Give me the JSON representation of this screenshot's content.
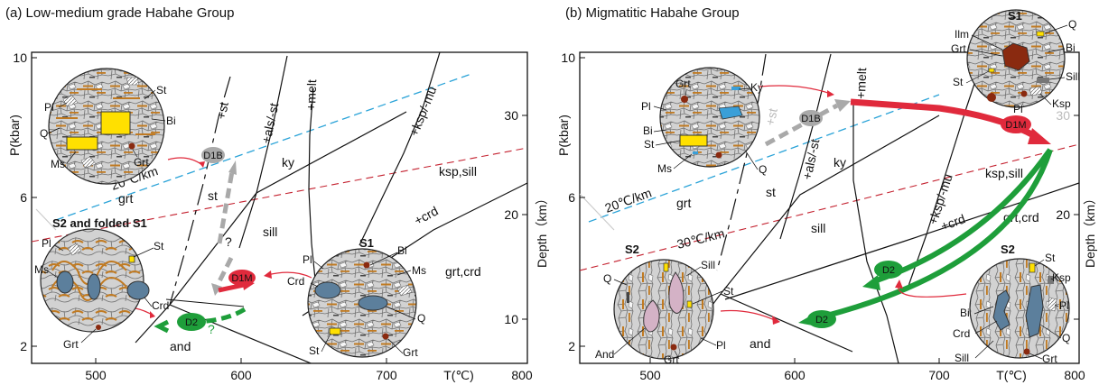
{
  "panels": [
    {
      "title": "(a) Low-medium grade Habahe Group",
      "axes": {
        "ylabel": "P(kbar)",
        "xlabel": "T(℃)",
        "y2label": "Depth（km）",
        "yticks": [
          "10",
          "6",
          "2"
        ],
        "xticks": [
          "500",
          "600",
          "700",
          "800"
        ],
        "y2ticks": [
          "30",
          "20",
          "10"
        ]
      },
      "gradients": [
        "20℃/km"
      ],
      "reaction_labels": [
        "+st",
        "+als/-st",
        "+melt",
        "+ksp/-mu",
        "+crd"
      ],
      "field_labels": [
        "grt",
        "st",
        "ky",
        "sill",
        "ksp,sill",
        "grt,crd",
        "and"
      ],
      "path_labels": [
        "D1B",
        "D1M",
        "D2",
        "?",
        "?"
      ],
      "circles": [
        {
          "title": "",
          "minerals": [
            "Pl",
            "St",
            "Bi",
            "Q",
            "Ms",
            "Grt"
          ]
        },
        {
          "title": "S2 and folded S1",
          "minerals": [
            "Pl",
            "St",
            "Ms",
            "Crd",
            "Grt"
          ]
        },
        {
          "title": "S1",
          "minerals": [
            "Pl",
            "Bi",
            "Crd",
            "Ms",
            "Q",
            "St",
            "Grt"
          ]
        }
      ]
    },
    {
      "title": "(b) Migmatitic Habahe Group",
      "axes": {
        "ylabel": "P(kbar)",
        "xlabel": "T(℃)",
        "y2label": "Depth（km）",
        "yticks": [
          "10",
          "6",
          "2"
        ],
        "xticks": [
          "500",
          "600",
          "700",
          "800"
        ],
        "y2ticks": [
          "30",
          "20",
          "10"
        ]
      },
      "gradients": [
        "20℃/km",
        "30℃/km"
      ],
      "reaction_labels": [
        "+st",
        "+als/-st",
        "+melt",
        "+ksp/-mu",
        "+crd"
      ],
      "field_labels": [
        "grt",
        "st",
        "ky",
        "sill",
        "ksp,sill",
        "grt,crd",
        "and"
      ],
      "path_labels": [
        "D1B",
        "D1M",
        "D2",
        "D2"
      ],
      "circles": [
        {
          "title": "",
          "minerals": [
            "Grt",
            "Ky",
            "Pl",
            "Bi",
            "St",
            "Ms",
            "Q"
          ]
        },
        {
          "title": "S1",
          "minerals": [
            "Q",
            "Ilm",
            "Grt",
            "Bi",
            "St",
            "Sill",
            "Pl",
            "Ksp"
          ]
        },
        {
          "title": "S2",
          "minerals": [
            "Q",
            "Sill",
            "St",
            "And",
            "Grt",
            "Pl"
          ]
        },
        {
          "title": "S2",
          "minerals": [
            "St",
            "Ksp",
            "Bi",
            "Pl",
            "Crd",
            "Sill",
            "Q",
            "Grt"
          ]
        }
      ]
    }
  ],
  "colors": {
    "d1b": "#a9a9a9",
    "d1m": "#e02a3c",
    "d2": "#1e9e3a",
    "gradient20": "#2aa3d8",
    "gradient30": "#c4212f",
    "grain": "#c8c8c8",
    "grain_edge": "#707070",
    "mica": "#c07a22",
    "stau": "#ffe000",
    "garnet": "#8a2a10",
    "cord": "#5c7f9c",
    "andal": "#d4b2c6"
  }
}
